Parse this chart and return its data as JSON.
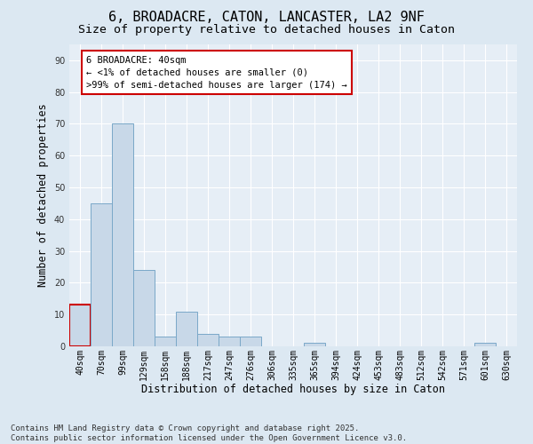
{
  "title": "6, BROADACRE, CATON, LANCASTER, LA2 9NF",
  "subtitle": "Size of property relative to detached houses in Caton",
  "xlabel": "Distribution of detached houses by size in Caton",
  "ylabel": "Number of detached properties",
  "categories": [
    "40sqm",
    "70sqm",
    "99sqm",
    "129sqm",
    "158sqm",
    "188sqm",
    "217sqm",
    "247sqm",
    "276sqm",
    "306sqm",
    "335sqm",
    "365sqm",
    "394sqm",
    "424sqm",
    "453sqm",
    "483sqm",
    "512sqm",
    "542sqm",
    "571sqm",
    "601sqm",
    "630sqm"
  ],
  "values": [
    13,
    45,
    70,
    24,
    3,
    11,
    4,
    3,
    3,
    0,
    0,
    1,
    0,
    0,
    0,
    0,
    0,
    0,
    0,
    1,
    0
  ],
  "bar_color": "#c8d8e8",
  "bar_edge_color": "#7aa8c8",
  "highlight_bar_index": 0,
  "highlight_edge_color": "#cc0000",
  "annotation_box_text": "6 BROADACRE: 40sqm\n← <1% of detached houses are smaller (0)\n>99% of semi-detached houses are larger (174) →",
  "ylim": [
    0,
    95
  ],
  "yticks": [
    0,
    10,
    20,
    30,
    40,
    50,
    60,
    70,
    80,
    90
  ],
  "bg_color": "#dce8f2",
  "plot_bg_color": "#e6eef6",
  "footer": "Contains HM Land Registry data © Crown copyright and database right 2025.\nContains public sector information licensed under the Open Government Licence v3.0.",
  "title_fontsize": 11,
  "subtitle_fontsize": 9.5,
  "axis_label_fontsize": 8.5,
  "tick_fontsize": 7,
  "annotation_fontsize": 7.5,
  "footer_fontsize": 6.5
}
